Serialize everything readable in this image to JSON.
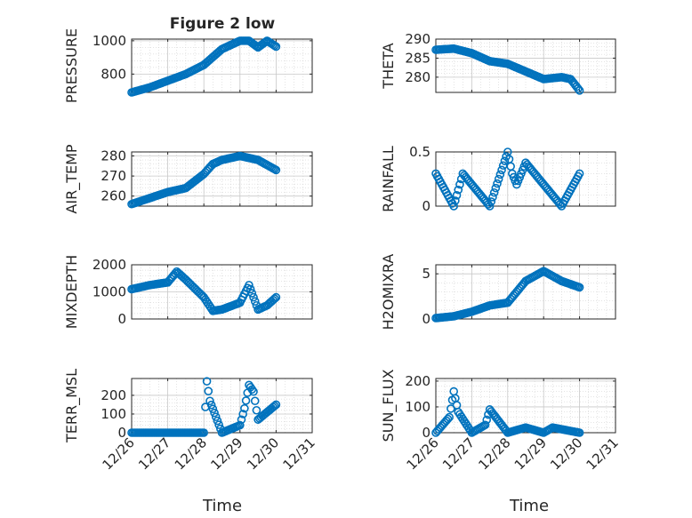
{
  "figure": {
    "title": "Figure 2 low",
    "xlabel_left": "Time",
    "xlabel_right": "Time"
  },
  "colors": {
    "marker": "#0072BD",
    "axis": "#262626",
    "grid": "#c8c8c8"
  },
  "chart_data": [
    {
      "type": "scatter",
      "ylabel": "PRESSURE",
      "xlim": [
        "12/26",
        "12/31"
      ],
      "ylim": [
        690,
        1010
      ],
      "yticks": [
        800,
        1000
      ],
      "x": [
        "12/26",
        "12/26 12:00",
        "12/27",
        "12/27 12:00",
        "12/28",
        "12/28 12:00",
        "12/29",
        "12/29 06:00",
        "12/29 12:00",
        "12/29 18:00",
        "12/30"
      ],
      "values": [
        690,
        720,
        760,
        800,
        855,
        950,
        1000,
        1000,
        960,
        1000,
        965
      ]
    },
    {
      "type": "scatter",
      "ylabel": "THETA",
      "xlim": [
        "12/26",
        "12/31"
      ],
      "ylim": [
        276,
        290
      ],
      "yticks": [
        280,
        285,
        290
      ],
      "x": [
        "12/26",
        "12/26 12:00",
        "12/27",
        "12/27 12:00",
        "12/28",
        "12/28 12:00",
        "12/29",
        "12/29 12:00",
        "12/29 18:00",
        "12/30"
      ],
      "values": [
        287.2,
        287.5,
        286.3,
        284.2,
        283.5,
        281.5,
        279.5,
        280.0,
        279.5,
        276.5
      ]
    },
    {
      "type": "scatter",
      "ylabel": "AIR_TEMP",
      "xlim": [
        "12/26",
        "12/31"
      ],
      "ylim": [
        255,
        282
      ],
      "yticks": [
        260,
        270,
        280
      ],
      "x": [
        "12/26",
        "12/26 12:00",
        "12/27",
        "12/27 12:00",
        "12/28",
        "12/28 06:00",
        "12/28 12:00",
        "12/29",
        "12/29 12:00",
        "12/30"
      ],
      "values": [
        256,
        259,
        262,
        264,
        271,
        276,
        278,
        280,
        278,
        273
      ]
    },
    {
      "type": "scatter",
      "ylabel": "RAINFALL",
      "xlim": [
        "12/26",
        "12/31"
      ],
      "ylim": [
        0,
        0.5
      ],
      "yticks": [
        0,
        0.5
      ],
      "x": [
        "12/26",
        "12/26 12:00",
        "12/26 18:00",
        "12/27",
        "12/27 12:00",
        "12/28",
        "12/28 03:00",
        "12/28 06:00",
        "12/28 12:00",
        "12/28 18:00",
        "12/29",
        "12/29 12:00",
        "12/30"
      ],
      "values": [
        0.3,
        0,
        0.3,
        0.2,
        0,
        0.5,
        0.3,
        0.2,
        0.4,
        0.3,
        0.2,
        0,
        0.3
      ]
    },
    {
      "type": "scatter",
      "ylabel": "MIXDEPTH",
      "xlim": [
        "12/26",
        "12/31"
      ],
      "ylim": [
        0,
        2000
      ],
      "yticks": [
        0,
        1000,
        2000
      ],
      "x": [
        "12/26",
        "12/26 12:00",
        "12/27",
        "12/27 06:00",
        "12/27 12:00",
        "12/28",
        "12/28 06:00",
        "12/28 12:00",
        "12/29",
        "12/29 06:00",
        "12/29 12:00",
        "12/29 18:00",
        "12/30"
      ],
      "values": [
        1100,
        1250,
        1350,
        1750,
        1450,
        800,
        300,
        350,
        600,
        1250,
        350,
        500,
        800
      ]
    },
    {
      "type": "scatter",
      "ylabel": "H2OMIXRA",
      "xlim": [
        "12/26",
        "12/31"
      ],
      "ylim": [
        0,
        6
      ],
      "yticks": [
        0,
        5
      ],
      "x": [
        "12/26",
        "12/26 12:00",
        "12/27",
        "12/27 12:00",
        "12/28",
        "12/28 12:00",
        "12/29",
        "12/29 12:00",
        "12/30"
      ],
      "values": [
        0.1,
        0.3,
        0.8,
        1.5,
        1.8,
        4.2,
        5.3,
        4.2,
        3.5
      ]
    },
    {
      "type": "scatter",
      "ylabel": "TERR_MSL",
      "xlim": [
        "12/26",
        "12/31"
      ],
      "ylim": [
        0,
        290
      ],
      "yticks": [
        0,
        100,
        200
      ],
      "x": [
        "12/26",
        "12/27",
        "12/28",
        "12/28 02:00",
        "12/28 04:00",
        "12/28 12:00",
        "12/29",
        "12/29 03:00",
        "12/29 06:00",
        "12/29 09:00",
        "12/29 12:00",
        "12/30"
      ],
      "values": [
        0,
        0,
        0,
        275,
        170,
        0,
        40,
        130,
        255,
        220,
        70,
        150
      ]
    },
    {
      "type": "scatter",
      "ylabel": "SUN_FLUX",
      "xlim": [
        "12/26",
        "12/31"
      ],
      "ylim": [
        0,
        210
      ],
      "yticks": [
        0,
        100,
        200
      ],
      "x": [
        "12/26",
        "12/26 09:00",
        "12/26 12:00",
        "12/26 15:00",
        "12/27",
        "12/27 09:00",
        "12/27 12:00",
        "12/28",
        "12/28 12:00",
        "12/29",
        "12/29 06:00",
        "12/30"
      ],
      "values": [
        0,
        60,
        160,
        80,
        0,
        30,
        90,
        0,
        20,
        0,
        20,
        0
      ]
    }
  ]
}
